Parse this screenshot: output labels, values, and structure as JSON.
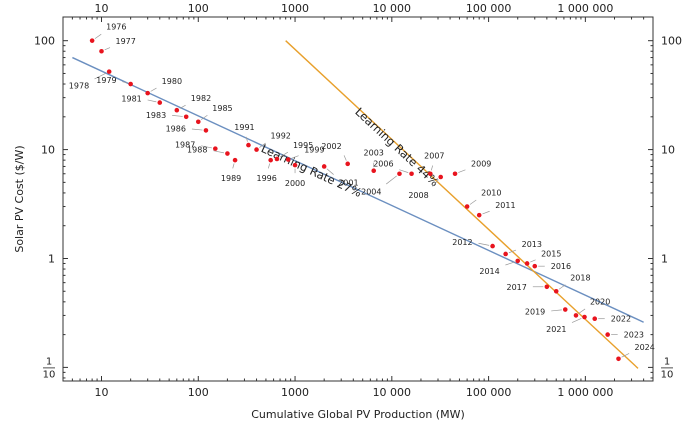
{
  "chart_data": {
    "type": "scatter",
    "xlabel": "Cumulative Global PV Production (MW)",
    "ylabel": "Solar PV Cost ($/W)",
    "x_scale": "log",
    "y_scale": "log",
    "xlim": [
      4,
      5000000
    ],
    "ylim": [
      0.075,
      165
    ],
    "x_ticks": [
      {
        "value": 10,
        "label": "10"
      },
      {
        "value": 100,
        "label": "100"
      },
      {
        "value": 1000,
        "label": "1000"
      },
      {
        "value": 10000,
        "label": "10 000"
      },
      {
        "value": 100000,
        "label": "100 000"
      },
      {
        "value": 1000000,
        "label": "1 000 000"
      }
    ],
    "y_ticks": [
      {
        "value": 100,
        "label": "100"
      },
      {
        "value": 10,
        "label": "10"
      },
      {
        "value": 1,
        "label": "1"
      },
      {
        "value": 0.1,
        "numerator": "1",
        "denominator": "10"
      }
    ],
    "series": [
      {
        "color": "#e8141e",
        "points": [
          {
            "label": "1976",
            "x": 8,
            "y": 100
          },
          {
            "label": "1977",
            "x": 10,
            "y": 80
          },
          {
            "label": "1978",
            "x": 12,
            "y": 52
          },
          {
            "label": "1979",
            "x": 20,
            "y": 40
          },
          {
            "label": "1980",
            "x": 30,
            "y": 33
          },
          {
            "label": "1981",
            "x": 40,
            "y": 27
          },
          {
            "label": "1982",
            "x": 60,
            "y": 23
          },
          {
            "label": "1983",
            "x": 75,
            "y": 20
          },
          {
            "label": "1985",
            "x": 100,
            "y": 18
          },
          {
            "label": "1986",
            "x": 120,
            "y": 15
          },
          {
            "label": "1987",
            "x": 150,
            "y": 10.2
          },
          {
            "label": "1988",
            "x": 200,
            "y": 9.2
          },
          {
            "label": "1989",
            "x": 240,
            "y": 8
          },
          {
            "label": "1991",
            "x": 330,
            "y": 11
          },
          {
            "label": "1992",
            "x": 400,
            "y": 10
          },
          {
            "label": "1995",
            "x": 650,
            "y": 8.2
          },
          {
            "label": "1996",
            "x": 560,
            "y": 8
          },
          {
            "label": "1999",
            "x": 850,
            "y": 8.1
          },
          {
            "label": "2000",
            "x": 1000,
            "y": 7.2
          },
          {
            "label": "2001",
            "x": 2000,
            "y": 7
          },
          {
            "label": "2002",
            "x": 3500,
            "y": 7.4
          },
          {
            "label": "2003",
            "x": 6500,
            "y": 6.4
          },
          {
            "label": "2004",
            "x": 12000,
            "y": 6
          },
          {
            "label": "2006",
            "x": 16000,
            "y": 6
          },
          {
            "label": "2007",
            "x": 25000,
            "y": 6
          },
          {
            "label": "2008",
            "x": 32000,
            "y": 5.6
          },
          {
            "label": "2009",
            "x": 45000,
            "y": 6
          },
          {
            "label": "2010",
            "x": 60000,
            "y": 3
          },
          {
            "label": "2011",
            "x": 80000,
            "y": 2.5
          },
          {
            "label": "2012",
            "x": 110000,
            "y": 1.3
          },
          {
            "label": "2013",
            "x": 150000,
            "y": 1.1
          },
          {
            "label": "2014",
            "x": 200000,
            "y": 0.95
          },
          {
            "label": "2015",
            "x": 250000,
            "y": 0.9
          },
          {
            "label": "2016",
            "x": 300000,
            "y": 0.85
          },
          {
            "label": "2017",
            "x": 400000,
            "y": 0.55
          },
          {
            "label": "2018",
            "x": 500000,
            "y": 0.5
          },
          {
            "label": "2019",
            "x": 620000,
            "y": 0.34
          },
          {
            "label": "2020",
            "x": 800000,
            "y": 0.3
          },
          {
            "label": "2021",
            "x": 980000,
            "y": 0.29
          },
          {
            "label": "2022",
            "x": 1250000,
            "y": 0.28
          },
          {
            "label": "2023",
            "x": 1700000,
            "y": 0.2
          },
          {
            "label": "2024",
            "x": 2200000,
            "y": 0.12
          }
        ]
      }
    ],
    "trend_lines": [
      {
        "label": "Learning Rate 27%",
        "color": "#6b8fc0",
        "from": {
          "x": 5,
          "y": 70
        },
        "to": {
          "x": 4000000,
          "y": 0.26
        }
      },
      {
        "label": "Learning Rate 44%",
        "color": "#e8a02c",
        "from": {
          "x": 800,
          "y": 100
        },
        "to": {
          "x": 3500000,
          "y": 0.098
        }
      }
    ]
  }
}
